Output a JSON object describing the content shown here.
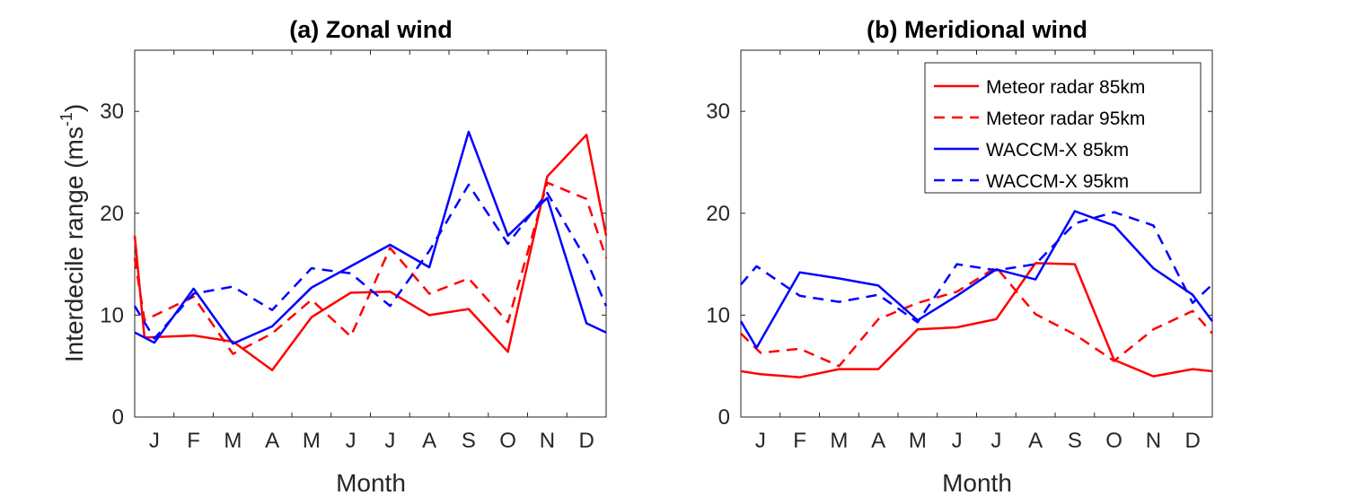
{
  "chart_data": [
    {
      "type": "line",
      "title": "(a) Zonal wind",
      "xlabel": "Month",
      "ylabel_main": "Interdecile range (ms",
      "ylabel_sup": "-1",
      "ylabel_end": ")",
      "xlim": [
        0.5,
        12.5
      ],
      "ylim": [
        0,
        36
      ],
      "xtick_values": [
        1,
        2,
        3,
        4,
        5,
        6,
        7,
        8,
        9,
        10,
        11,
        12
      ],
      "xtick_labels": [
        "J",
        "F",
        "M",
        "A",
        "M",
        "J",
        "J",
        "A",
        "S",
        "O",
        "N",
        "D"
      ],
      "ytick_values": [
        0,
        10,
        20,
        30
      ],
      "ytick_labels": [
        "0",
        "10",
        "20",
        "30"
      ],
      "legend": false,
      "series": [
        {
          "name": "Meteor radar 85km",
          "color": "#ff0000",
          "dash": "solid",
          "x": [
            0.5,
            0.75,
            2,
            3,
            4,
            5,
            6,
            7,
            8,
            9,
            10,
            11,
            12,
            12.5
          ],
          "y": [
            17.8,
            7.8,
            8.0,
            7.4,
            4.6,
            9.8,
            12.2,
            12.3,
            10.0,
            10.6,
            6.4,
            23.6,
            27.7,
            17.8
          ]
        },
        {
          "name": "Meteor radar 95km",
          "color": "#ff0000",
          "dash": "dashed",
          "x": [
            0.5,
            0.75,
            2,
            3,
            4,
            5,
            6,
            7,
            8,
            9,
            10,
            11,
            12,
            12.5
          ],
          "y": [
            15.6,
            9.5,
            11.8,
            6.2,
            8.2,
            11.5,
            7.9,
            16.6,
            12.1,
            13.6,
            9.3,
            23.0,
            21.4,
            15.6
          ]
        },
        {
          "name": "WACCM-X 85km",
          "color": "#0000ff",
          "dash": "solid",
          "x": [
            0.5,
            1,
            2,
            3,
            4,
            5,
            6,
            7,
            8,
            9,
            10,
            11,
            12,
            12.5
          ],
          "y": [
            8.3,
            7.3,
            12.6,
            7.2,
            8.9,
            12.7,
            14.8,
            16.9,
            14.7,
            28.0,
            17.8,
            21.5,
            9.2,
            8.3
          ]
        },
        {
          "name": "WACCM-X 95km",
          "color": "#0000ff",
          "dash": "dashed",
          "x": [
            0.5,
            1,
            2,
            3,
            4,
            5,
            6,
            7,
            8,
            9,
            10,
            11,
            12,
            12.5
          ],
          "y": [
            10.9,
            7.7,
            12.1,
            12.8,
            10.5,
            14.6,
            14.1,
            10.9,
            16.3,
            22.8,
            17.0,
            22.0,
            15.4,
            10.9
          ]
        }
      ]
    },
    {
      "type": "line",
      "title": "(b) Meridional wind",
      "xlabel": "Month",
      "xlim": [
        0.5,
        12.5
      ],
      "ylim": [
        0,
        36
      ],
      "xtick_values": [
        1,
        2,
        3,
        4,
        5,
        6,
        7,
        8,
        9,
        10,
        11,
        12
      ],
      "xtick_labels": [
        "J",
        "F",
        "M",
        "A",
        "M",
        "J",
        "J",
        "A",
        "S",
        "O",
        "N",
        "D"
      ],
      "ytick_values": [
        0,
        10,
        20,
        30
      ],
      "ytick_labels": [
        "0",
        "10",
        "20",
        "30"
      ],
      "legend": "top-right",
      "series": [
        {
          "name": "Meteor radar 85km",
          "color": "#ff0000",
          "dash": "solid",
          "x": [
            0.5,
            1,
            2,
            3,
            4,
            5,
            6,
            7,
            8,
            9,
            10,
            11,
            12,
            12.5
          ],
          "y": [
            4.5,
            4.2,
            3.9,
            4.7,
            4.7,
            8.6,
            8.8,
            9.6,
            15.1,
            15.0,
            5.6,
            4.0,
            4.7,
            4.5
          ]
        },
        {
          "name": "Meteor radar 95km",
          "color": "#ff0000",
          "dash": "dashed",
          "x": [
            0.5,
            1,
            2,
            3,
            4,
            5,
            6,
            7,
            8,
            9,
            10,
            11,
            12,
            12.5
          ],
          "y": [
            8.2,
            6.3,
            6.7,
            5.0,
            9.6,
            11.2,
            12.3,
            14.7,
            10.1,
            8.1,
            5.5,
            8.6,
            10.4,
            8.2
          ]
        },
        {
          "name": "WACCM-X 85km",
          "color": "#0000ff",
          "dash": "solid",
          "x": [
            0.5,
            0.9,
            2,
            3,
            4,
            5,
            6,
            7,
            8,
            9,
            10,
            11,
            12,
            12.5
          ],
          "y": [
            9.4,
            6.8,
            14.2,
            13.6,
            12.9,
            9.5,
            11.9,
            14.5,
            13.5,
            20.2,
            18.8,
            14.6,
            12.0,
            9.4
          ]
        },
        {
          "name": "WACCM-X 95km",
          "color": "#0000ff",
          "dash": "dashed",
          "x": [
            0.5,
            0.9,
            2,
            3,
            4,
            5,
            6,
            7,
            8,
            9,
            10,
            11,
            12,
            12.5
          ],
          "y": [
            13.0,
            14.8,
            11.9,
            11.3,
            12.0,
            9.3,
            15.0,
            14.4,
            15.0,
            19.0,
            20.1,
            18.8,
            11.2,
            13.0
          ]
        }
      ]
    }
  ]
}
